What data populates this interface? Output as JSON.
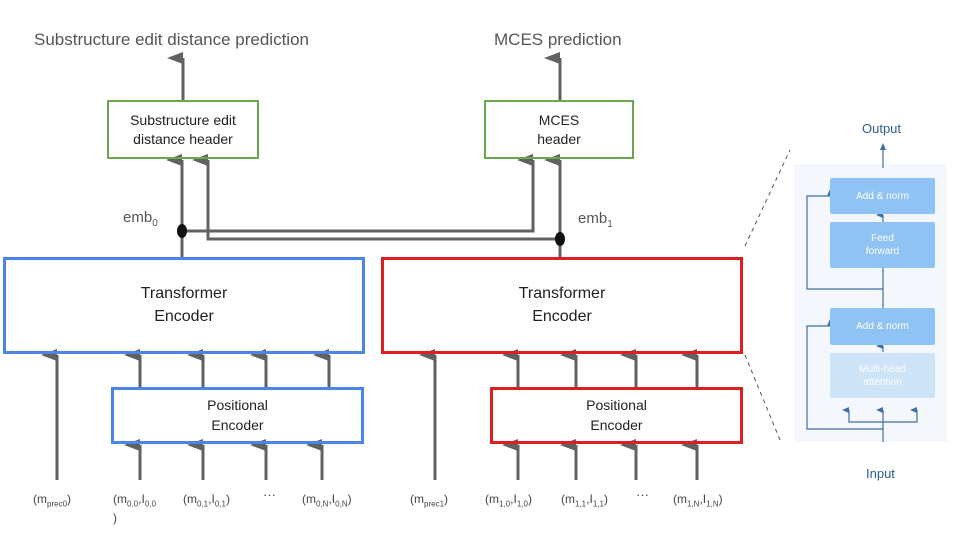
{
  "titles": {
    "left": "Substructure edit distance prediction",
    "right": "MCES prediction"
  },
  "headers": {
    "left": {
      "line1": "Substructure edit",
      "line2": "distance header"
    },
    "right": {
      "line1": "MCES",
      "line2": "header"
    }
  },
  "embeddings": {
    "left": {
      "base": "emb",
      "sub": "0"
    },
    "right": {
      "base": "emb",
      "sub": "1"
    }
  },
  "transformer": {
    "line1": "Transformer",
    "line2": "Encoder"
  },
  "positional": {
    "line1": "Positional",
    "line2": "Encoder"
  },
  "inputs": {
    "left": [
      {
        "a": "m",
        "a_sub": "prec0",
        "b": "",
        "b_sub": "",
        "tail": ")"
      },
      {
        "a": "m",
        "a_sub": "0,0",
        "b": "I",
        "b_sub": "0,0",
        "tail": ""
      },
      {
        "a": "m",
        "a_sub": "0,1",
        "b": "I",
        "b_sub": "0,1",
        "tail": ")"
      },
      {
        "a": "m",
        "a_sub": "0,N",
        "b": "I",
        "b_sub": "0,N",
        "tail": ")"
      }
    ],
    "left_wrap": ")",
    "right": [
      {
        "a": "m",
        "a_sub": "prec1",
        "b": "",
        "b_sub": "",
        "tail": ")"
      },
      {
        "a": "m",
        "a_sub": "1,0",
        "b": "I",
        "b_sub": "1,0",
        "tail": ")"
      },
      {
        "a": "m",
        "a_sub": "1,1",
        "b": "I",
        "b_sub": "1,1",
        "tail": ")"
      },
      {
        "a": "m",
        "a_sub": "1,N",
        "b": "I",
        "b_sub": "1,N",
        "tail": ")"
      }
    ],
    "ellipsis": "···"
  },
  "detail_panel": {
    "output": "Output",
    "input": "Input",
    "add_norm_top": "Add & norm",
    "feed_forward": {
      "line1": "Feed",
      "line2": "forward"
    },
    "add_norm_bottom": "Add & norm",
    "multi_head": {
      "line1": "Multi-head",
      "line2": "attention"
    }
  },
  "colors": {
    "header_border": "#6aa84f",
    "encoder_blue": "#4a86e8",
    "encoder_red": "#dd1f1f",
    "arrow": "#616161",
    "panel_block": "#8fc3f3",
    "panel_block_light": "#cde3f8",
    "panel_line": "#3f6fa8"
  }
}
